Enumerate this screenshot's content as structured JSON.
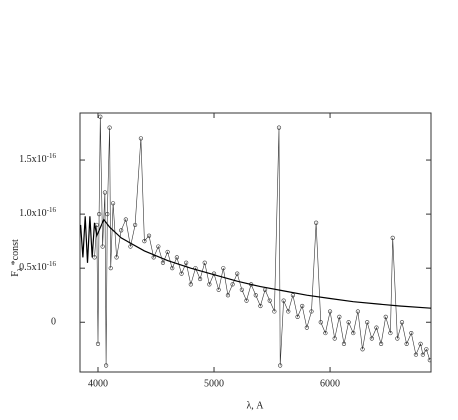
{
  "chart_data": {
    "type": "line",
    "x_label": "λ, A",
    "y_label": "F",
    "y_label_subscript": "λ",
    "y_label_suffix": " *const",
    "xlim": [
      3845,
      6870
    ],
    "ylim": [
      -4.6e-17,
      1.935e-16
    ],
    "xticks": [
      4000,
      5000,
      6000
    ],
    "yticks": [
      0,
      {
        "value": 5e-17,
        "label": "0.5x10",
        "exponent": "-16"
      },
      {
        "value": 1e-16,
        "label": "1.0x10",
        "exponent": "-16"
      },
      {
        "value": 1.5e-16,
        "label": "1.5x10",
        "exponent": "-16"
      }
    ],
    "series": [
      {
        "color": "#333333",
        "marker": "circle",
        "x": [
          3970,
          3990,
          4000,
          4010,
          4020,
          4040,
          4060,
          4070,
          4080,
          4100,
          4110,
          4130,
          4160,
          4200,
          4240,
          4280,
          4320,
          4370,
          4400,
          4440,
          4480,
          4520,
          4560,
          4600,
          4640,
          4680,
          4720,
          4760,
          4800,
          4840,
          4880,
          4920,
          4960,
          5000,
          5040,
          5080,
          5120,
          5160,
          5200,
          5240,
          5280,
          5320,
          5360,
          5400,
          5440,
          5480,
          5520,
          5560,
          5570,
          5600,
          5640,
          5680,
          5720,
          5760,
          5800,
          5840,
          5880,
          5920,
          5960,
          6000,
          6040,
          6080,
          6120,
          6160,
          6200,
          6240,
          6280,
          6320,
          6360,
          6400,
          6440,
          6480,
          6520,
          6540,
          6580,
          6620,
          6660,
          6700,
          6740,
          6780,
          6800,
          6830,
          6860
        ],
        "values": [
          6e-17,
          9e-17,
          -2e-17,
          1e-16,
          1.9e-16,
          7e-17,
          1.2e-16,
          -4e-17,
          1e-16,
          1.8e-16,
          5e-17,
          1.1e-16,
          6e-17,
          8.5e-17,
          9.5e-17,
          7e-17,
          9e-17,
          1.7e-16,
          7.5e-17,
          8e-17,
          6e-17,
          7e-17,
          5.5e-17,
          6.5e-17,
          5e-17,
          6e-17,
          4.5e-17,
          5.5e-17,
          3.5e-17,
          5e-17,
          4e-17,
          5.5e-17,
          3.5e-17,
          4.5e-17,
          3e-17,
          5e-17,
          2.5e-17,
          3.5e-17,
          4.5e-17,
          3e-17,
          2e-17,
          3.5e-17,
          2.5e-17,
          1.5e-17,
          3e-17,
          2e-17,
          1e-17,
          1.8e-16,
          -4e-17,
          2e-17,
          1e-17,
          2.5e-17,
          5e-18,
          1.5e-17,
          -5e-18,
          1e-17,
          9.2e-17,
          0.0,
          -1e-17,
          1e-17,
          -1.5e-17,
          5e-18,
          -2e-17,
          0.0,
          -1e-17,
          1e-17,
          -2.5e-17,
          0.0,
          -1.5e-17,
          -5e-18,
          -2e-17,
          5e-18,
          -1e-17,
          7.8e-17,
          -1.5e-17,
          0.0,
          -2e-17,
          -1e-17,
          -3e-17,
          -2e-17,
          -3e-17,
          -2.5e-17,
          -3.5e-17
        ]
      },
      {
        "color": "#000000",
        "x": [
          3850,
          3870,
          3890,
          3910,
          3930,
          3950,
          3970,
          3990,
          4050,
          4100,
          4200,
          4400,
          4600,
          4800,
          5000,
          5200,
          5400,
          5600,
          5800,
          6000,
          6200,
          6400,
          6600,
          6870
        ],
        "values": [
          9e-17,
          6e-17,
          9.8e-17,
          5.5e-17,
          9.8e-17,
          6e-17,
          9.2e-17,
          8e-17,
          9.5e-17,
          8.8e-17,
          7.8e-17,
          6.6e-17,
          5.7e-17,
          5e-17,
          4.4e-17,
          3.8e-17,
          3.3e-17,
          2.9e-17,
          2.5e-17,
          2.2e-17,
          1.9e-17,
          1.7e-17,
          1.5e-17,
          1.3e-17
        ]
      }
    ]
  }
}
